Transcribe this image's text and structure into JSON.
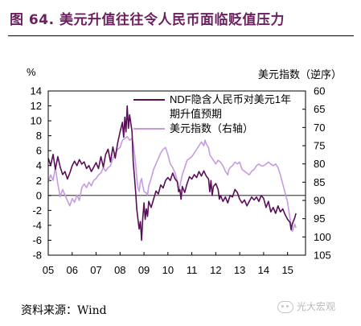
{
  "figure": {
    "title": "图 64. 美元升值往往令人民币面临贬值压力",
    "source_label": "资料来源：",
    "source_value": "Wind",
    "watermark": "光大宏观"
  },
  "colors": {
    "title": "#6b1f5f",
    "ndf_series": "#5a0e5a",
    "dxy_series": "#c79be2"
  },
  "chart_data": {
    "type": "line",
    "left_axis": {
      "unit_label": "%",
      "ylim": [
        -8,
        14
      ],
      "ticks": [
        "14",
        "12",
        "10",
        "8",
        "6",
        "4",
        "2",
        "0",
        "-2",
        "-4",
        "-6",
        "-8"
      ]
    },
    "right_axis": {
      "title": "美元指数（逆序）",
      "ylim": [
        105,
        60
      ],
      "inverted": true,
      "ticks": [
        "60",
        "65",
        "70",
        "75",
        "80",
        "85",
        "90",
        "95",
        "100",
        "105"
      ]
    },
    "x_axis": {
      "ticks": [
        "05",
        "06",
        "07",
        "08",
        "09",
        "10",
        "11",
        "12",
        "13",
        "14",
        "15"
      ],
      "range": [
        2005.0,
        2015.75
      ]
    },
    "legend": {
      "placement": "top-right",
      "items": [
        {
          "label": "NDF隐含人民币对美元1年期升值预期",
          "line1": "NDF隐含人民币对美元1年",
          "line2": "期升值预期",
          "axis": "left"
        },
        {
          "label": "美元指数（右轴）",
          "axis": "right"
        }
      ]
    },
    "series": [
      {
        "name": "NDF隐含人民币对美元1年期升值预期",
        "axis": "left",
        "points": [
          [
            2005.0,
            5.0
          ],
          [
            2005.1,
            4.0
          ],
          [
            2005.2,
            5.5
          ],
          [
            2005.3,
            3.5
          ],
          [
            2005.4,
            5.2
          ],
          [
            2005.5,
            3.8
          ],
          [
            2005.6,
            2.8
          ],
          [
            2005.7,
            3.2
          ],
          [
            2005.8,
            2.2
          ],
          [
            2005.9,
            3.0
          ],
          [
            2006.0,
            4.0
          ],
          [
            2006.1,
            4.6
          ],
          [
            2006.2,
            4.0
          ],
          [
            2006.3,
            4.8
          ],
          [
            2006.4,
            4.2
          ],
          [
            2006.5,
            4.5
          ],
          [
            2006.6,
            3.6
          ],
          [
            2006.7,
            4.0
          ],
          [
            2006.8,
            3.2
          ],
          [
            2006.9,
            3.8
          ],
          [
            2007.0,
            4.4
          ],
          [
            2007.1,
            3.6
          ],
          [
            2007.2,
            5.2
          ],
          [
            2007.3,
            3.8
          ],
          [
            2007.4,
            5.5
          ],
          [
            2007.5,
            6.2
          ],
          [
            2007.6,
            4.5
          ],
          [
            2007.7,
            6.5
          ],
          [
            2007.8,
            5.0
          ],
          [
            2007.9,
            7.0
          ],
          [
            2008.0,
            8.5
          ],
          [
            2008.1,
            9.8
          ],
          [
            2008.15,
            7.8
          ],
          [
            2008.2,
            10.5
          ],
          [
            2008.25,
            8.5
          ],
          [
            2008.3,
            12.0
          ],
          [
            2008.35,
            9.0
          ],
          [
            2008.4,
            10.8
          ],
          [
            2008.5,
            8.6
          ],
          [
            2008.55,
            4.5
          ],
          [
            2008.6,
            2.5
          ],
          [
            2008.65,
            0.5
          ],
          [
            2008.7,
            -1.8
          ],
          [
            2008.75,
            -3.2
          ],
          [
            2008.8,
            -4.5
          ],
          [
            2008.85,
            -3.5
          ],
          [
            2008.9,
            -6.0
          ],
          [
            2008.95,
            -3.0
          ],
          [
            2009.0,
            -1.0
          ],
          [
            2009.05,
            -3.2
          ],
          [
            2009.1,
            -1.8
          ],
          [
            2009.15,
            -2.8
          ],
          [
            2009.2,
            -0.8
          ],
          [
            2009.3,
            -1.6
          ],
          [
            2009.4,
            -0.5
          ],
          [
            2009.5,
            0.6
          ],
          [
            2009.6,
            0.2
          ],
          [
            2009.7,
            1.4
          ],
          [
            2009.8,
            1.0
          ],
          [
            2009.9,
            2.0
          ],
          [
            2010.0,
            2.4
          ],
          [
            2010.1,
            2.0
          ],
          [
            2010.2,
            3.0
          ],
          [
            2010.3,
            2.2
          ],
          [
            2010.4,
            1.8
          ],
          [
            2010.45,
            0.5
          ],
          [
            2010.5,
            0.8
          ],
          [
            2010.55,
            -0.5
          ],
          [
            2010.6,
            1.2
          ],
          [
            2010.7,
            0.4
          ],
          [
            2010.8,
            1.6
          ],
          [
            2010.9,
            2.5
          ],
          [
            2011.0,
            2.2
          ],
          [
            2011.1,
            2.8
          ],
          [
            2011.2,
            2.4
          ],
          [
            2011.3,
            3.2
          ],
          [
            2011.4,
            2.6
          ],
          [
            2011.5,
            3.3
          ],
          [
            2011.6,
            2.6
          ],
          [
            2011.7,
            2.2
          ],
          [
            2011.75,
            0.5
          ],
          [
            2011.8,
            2.0
          ],
          [
            2011.85,
            0.0
          ],
          [
            2011.9,
            1.2
          ],
          [
            2012.0,
            1.6
          ],
          [
            2012.1,
            0.8
          ],
          [
            2012.15,
            -0.5
          ],
          [
            2012.2,
            0.0
          ],
          [
            2012.3,
            -0.8
          ],
          [
            2012.4,
            -0.2
          ],
          [
            2012.5,
            -1.0
          ],
          [
            2012.6,
            0.0
          ],
          [
            2012.7,
            -0.2
          ],
          [
            2012.8,
            0.8
          ],
          [
            2012.9,
            0.4
          ],
          [
            2013.0,
            -0.5
          ],
          [
            2013.1,
            -1.0
          ],
          [
            2013.2,
            -0.6
          ],
          [
            2013.3,
            -1.4
          ],
          [
            2013.4,
            -0.8
          ],
          [
            2013.5,
            -0.2
          ],
          [
            2013.6,
            -0.6
          ],
          [
            2013.7,
            -0.2
          ],
          [
            2013.8,
            -0.8
          ],
          [
            2013.9,
            0.0
          ],
          [
            2014.0,
            -0.4
          ],
          [
            2014.1,
            -1.6
          ],
          [
            2014.2,
            -0.8
          ],
          [
            2014.3,
            -2.2
          ],
          [
            2014.4,
            -1.6
          ],
          [
            2014.5,
            -2.4
          ],
          [
            2014.6,
            -1.4
          ],
          [
            2014.7,
            -2.2
          ],
          [
            2014.8,
            -1.8
          ],
          [
            2014.9,
            -2.6
          ],
          [
            2015.0,
            -3.2
          ],
          [
            2015.1,
            -3.6
          ],
          [
            2015.15,
            -4.6
          ],
          [
            2015.2,
            -3.8
          ],
          [
            2015.3,
            -3.0
          ],
          [
            2015.35,
            -2.4
          ]
        ]
      },
      {
        "name": "美元指数（右轴）",
        "axis": "right",
        "points": [
          [
            2005.0,
            85.0
          ],
          [
            2005.1,
            83.0
          ],
          [
            2005.2,
            84.5
          ],
          [
            2005.3,
            81.0
          ],
          [
            2005.4,
            85.5
          ],
          [
            2005.5,
            89.0
          ],
          [
            2005.6,
            87.0
          ],
          [
            2005.7,
            88.5
          ],
          [
            2005.8,
            90.0
          ],
          [
            2005.9,
            91.5
          ],
          [
            2006.0,
            89.5
          ],
          [
            2006.1,
            90.5
          ],
          [
            2006.2,
            88.5
          ],
          [
            2006.3,
            90.0
          ],
          [
            2006.4,
            86.5
          ],
          [
            2006.5,
            85.5
          ],
          [
            2006.6,
            86.5
          ],
          [
            2006.7,
            85.0
          ],
          [
            2006.8,
            86.0
          ],
          [
            2006.9,
            84.5
          ],
          [
            2007.0,
            84.0
          ],
          [
            2007.1,
            83.0
          ],
          [
            2007.2,
            82.5
          ],
          [
            2007.3,
            81.0
          ],
          [
            2007.4,
            82.0
          ],
          [
            2007.5,
            81.0
          ],
          [
            2007.6,
            80.5
          ],
          [
            2007.7,
            78.5
          ],
          [
            2007.8,
            77.0
          ],
          [
            2007.9,
            76.0
          ],
          [
            2008.0,
            75.5
          ],
          [
            2008.1,
            73.5
          ],
          [
            2008.2,
            73.0
          ],
          [
            2008.3,
            72.5
          ],
          [
            2008.4,
            73.5
          ],
          [
            2008.5,
            73.0
          ],
          [
            2008.55,
            74.5
          ],
          [
            2008.6,
            77.0
          ],
          [
            2008.65,
            80.0
          ],
          [
            2008.7,
            84.0
          ],
          [
            2008.75,
            86.5
          ],
          [
            2008.8,
            87.5
          ],
          [
            2008.85,
            85.0
          ],
          [
            2008.9,
            84.0
          ],
          [
            2008.95,
            86.0
          ],
          [
            2009.0,
            87.5
          ],
          [
            2009.1,
            88.0
          ],
          [
            2009.15,
            88.5
          ],
          [
            2009.2,
            86.0
          ],
          [
            2009.3,
            84.0
          ],
          [
            2009.4,
            81.5
          ],
          [
            2009.5,
            80.0
          ],
          [
            2009.6,
            78.5
          ],
          [
            2009.7,
            77.0
          ],
          [
            2009.8,
            76.0
          ],
          [
            2009.9,
            75.5
          ],
          [
            2010.0,
            77.5
          ],
          [
            2010.1,
            80.0
          ],
          [
            2010.2,
            81.0
          ],
          [
            2010.3,
            82.5
          ],
          [
            2010.4,
            85.0
          ],
          [
            2010.45,
            87.5
          ],
          [
            2010.5,
            86.0
          ],
          [
            2010.6,
            83.0
          ],
          [
            2010.7,
            81.0
          ],
          [
            2010.8,
            79.0
          ],
          [
            2010.9,
            78.5
          ],
          [
            2011.0,
            78.0
          ],
          [
            2011.1,
            77.0
          ],
          [
            2011.2,
            76.0
          ],
          [
            2011.3,
            75.0
          ],
          [
            2011.4,
            74.0
          ],
          [
            2011.5,
            75.0
          ],
          [
            2011.55,
            73.5
          ],
          [
            2011.6,
            74.5
          ],
          [
            2011.7,
            75.5
          ],
          [
            2011.75,
            77.5
          ],
          [
            2011.8,
            78.0
          ],
          [
            2011.9,
            79.0
          ],
          [
            2012.0,
            80.0
          ],
          [
            2012.1,
            79.0
          ],
          [
            2012.2,
            79.5
          ],
          [
            2012.3,
            80.5
          ],
          [
            2012.4,
            82.0
          ],
          [
            2012.5,
            83.0
          ],
          [
            2012.55,
            81.5
          ],
          [
            2012.6,
            81.0
          ],
          [
            2012.7,
            80.5
          ],
          [
            2012.8,
            79.5
          ],
          [
            2012.9,
            80.0
          ],
          [
            2013.0,
            79.5
          ],
          [
            2013.1,
            81.5
          ],
          [
            2013.2,
            82.0
          ],
          [
            2013.3,
            82.5
          ],
          [
            2013.4,
            83.0
          ],
          [
            2013.5,
            82.0
          ],
          [
            2013.6,
            81.5
          ],
          [
            2013.7,
            80.5
          ],
          [
            2013.8,
            80.0
          ],
          [
            2013.9,
            80.5
          ],
          [
            2014.0,
            80.5
          ],
          [
            2014.1,
            80.0
          ],
          [
            2014.2,
            79.5
          ],
          [
            2014.3,
            80.0
          ],
          [
            2014.4,
            80.5
          ],
          [
            2014.5,
            80.0
          ],
          [
            2014.6,
            81.0
          ],
          [
            2014.7,
            83.0
          ],
          [
            2014.8,
            85.5
          ],
          [
            2014.9,
            88.0
          ],
          [
            2015.0,
            90.5
          ],
          [
            2015.1,
            95.0
          ],
          [
            2015.15,
            97.0
          ],
          [
            2015.2,
            98.5
          ],
          [
            2015.25,
            97.5
          ],
          [
            2015.3,
            96.5
          ],
          [
            2015.35,
            97.5
          ]
        ]
      }
    ]
  }
}
